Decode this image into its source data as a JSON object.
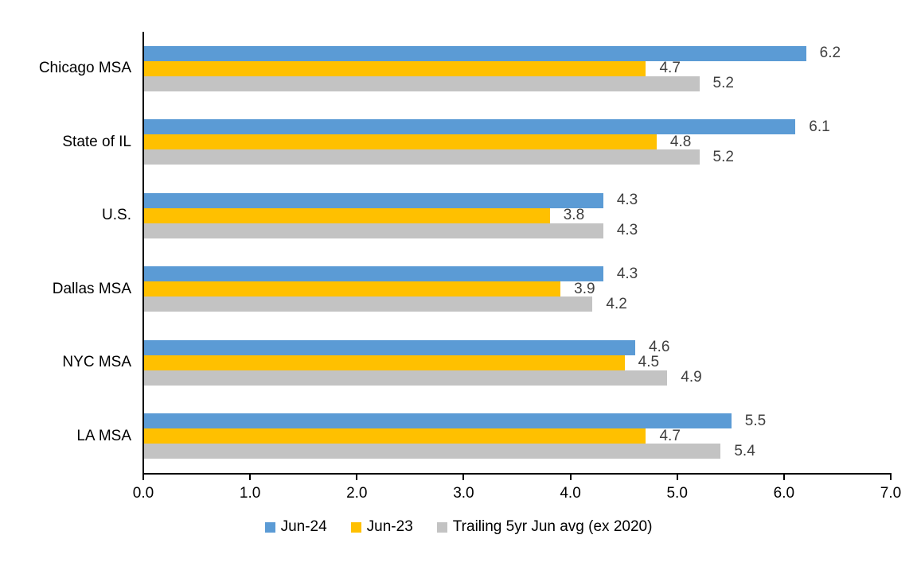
{
  "chart_data": {
    "type": "bar",
    "orientation": "horizontal",
    "title": "",
    "categories": [
      "Chicago MSA",
      "State of IL",
      "U.S.",
      "Dallas MSA",
      "NYC MSA",
      "LA MSA"
    ],
    "series": [
      {
        "name": "Jun-24",
        "color": "#5B9BD5",
        "values": [
          6.2,
          6.1,
          4.3,
          4.3,
          4.6,
          5.5
        ]
      },
      {
        "name": "Jun-23",
        "color": "#FFC000",
        "values": [
          4.7,
          4.8,
          3.8,
          3.9,
          4.5,
          4.7
        ]
      },
      {
        "name": "Trailing 5yr Jun avg (ex 2020)",
        "color": "#C3C3C3",
        "values": [
          5.2,
          5.2,
          4.3,
          4.2,
          4.9,
          5.4
        ]
      }
    ],
    "x_axis": {
      "min": 0,
      "max": 7,
      "tick_interval": 1,
      "tick_labels": [
        "0.0",
        "1.0",
        "2.0",
        "3.0",
        "4.0",
        "5.0",
        "6.0",
        "7.0"
      ]
    },
    "data_labels": {
      "show": true,
      "decimals": 1,
      "color": "#404040"
    },
    "legend_position": "bottom-center",
    "grid": false,
    "colors": {
      "axis": "#000000",
      "category_label": "#000000",
      "background": "#FFFFFF"
    }
  }
}
